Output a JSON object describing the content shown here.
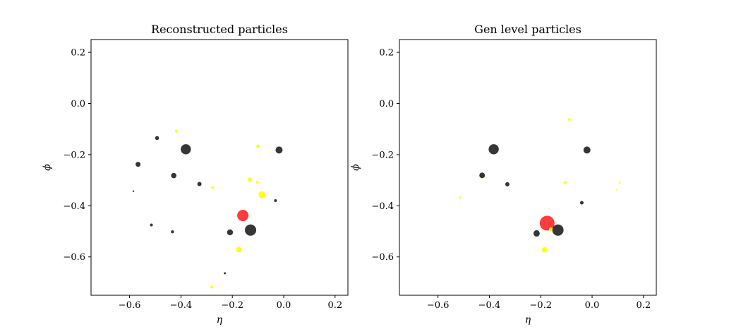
{
  "chart_data": [
    {
      "type": "scatter",
      "title": "Reconstructed particles",
      "xlabel": "η",
      "ylabel": "ϕ",
      "xlim": [
        -0.75,
        0.25
      ],
      "ylim": [
        -0.75,
        0.25
      ],
      "xticks": [
        -0.6,
        -0.4,
        -0.2,
        0.0,
        0.2
      ],
      "xtick_labels": [
        "−0.6",
        "−0.4",
        "−0.2",
        "0.0",
        "0.2"
      ],
      "yticks": [
        0.2,
        0.0,
        -0.2,
        -0.4,
        -0.6
      ],
      "ytick_labels": [
        "0.2",
        "0.0",
        "−0.2",
        "−0.4",
        "−0.6"
      ],
      "grid": false,
      "legend": "none",
      "colors": {
        "charged": "#1a1a1a",
        "neutral": "#ffff00",
        "highlight": "#ff2020"
      },
      "points": [
        {
          "eta": -0.585,
          "phi": -0.343,
          "size": 1.2,
          "kind": "charged"
        },
        {
          "eta": -0.567,
          "phi": -0.238,
          "size": 3.5,
          "kind": "charged"
        },
        {
          "eta": -0.515,
          "phi": -0.475,
          "size": 2.0,
          "kind": "charged"
        },
        {
          "eta": -0.493,
          "phi": -0.135,
          "size": 2.8,
          "kind": "charged"
        },
        {
          "eta": -0.433,
          "phi": -0.502,
          "size": 2.2,
          "kind": "charged"
        },
        {
          "eta": -0.428,
          "phi": -0.282,
          "size": 3.8,
          "kind": "charged"
        },
        {
          "eta": -0.418,
          "phi": -0.108,
          "size": 2.0,
          "kind": "neutral"
        },
        {
          "eta": -0.381,
          "phi": -0.179,
          "size": 7.2,
          "kind": "charged"
        },
        {
          "eta": -0.328,
          "phi": -0.315,
          "size": 3.0,
          "kind": "charged"
        },
        {
          "eta": -0.278,
          "phi": -0.328,
          "size": 1.8,
          "kind": "neutral"
        },
        {
          "eta": -0.281,
          "phi": -0.718,
          "size": 2.0,
          "kind": "neutral"
        },
        {
          "eta": -0.229,
          "phi": -0.664,
          "size": 1.5,
          "kind": "charged"
        },
        {
          "eta": -0.209,
          "phi": -0.504,
          "size": 4.2,
          "kind": "charged"
        },
        {
          "eta": -0.175,
          "phi": -0.571,
          "size": 4.0,
          "kind": "neutral"
        },
        {
          "eta": -0.159,
          "phi": -0.438,
          "size": 8.0,
          "kind": "highlight"
        },
        {
          "eta": -0.129,
          "phi": -0.495,
          "size": 8.0,
          "kind": "charged"
        },
        {
          "eta": -0.132,
          "phi": -0.297,
          "size": 3.0,
          "kind": "neutral"
        },
        {
          "eta": -0.103,
          "phi": -0.308,
          "size": 2.0,
          "kind": "neutral"
        },
        {
          "eta": -0.1,
          "phi": -0.167,
          "size": 2.5,
          "kind": "neutral"
        },
        {
          "eta": -0.085,
          "phi": -0.357,
          "size": 5.0,
          "kind": "neutral"
        },
        {
          "eta": -0.032,
          "phi": -0.38,
          "size": 2.0,
          "kind": "charged"
        },
        {
          "eta": -0.018,
          "phi": -0.182,
          "size": 5.0,
          "kind": "charged"
        }
      ]
    },
    {
      "type": "scatter",
      "title": "Gen level particles",
      "xlabel": "η",
      "ylabel": "ϕ",
      "xlim": [
        -0.75,
        0.25
      ],
      "ylim": [
        -0.75,
        0.25
      ],
      "xticks": [
        -0.6,
        -0.4,
        -0.2,
        0.0,
        0.2
      ],
      "xtick_labels": [
        "−0.6",
        "−0.4",
        "−0.2",
        "0.0",
        "0.2"
      ],
      "yticks": [
        0.2,
        0.0,
        -0.2,
        -0.4,
        -0.6
      ],
      "ytick_labels": [
        "0.2",
        "0.0",
        "−0.2",
        "−0.4",
        "−0.6"
      ],
      "grid": false,
      "legend": "none",
      "colors": {
        "charged": "#1a1a1a",
        "neutral": "#ffff00",
        "highlight": "#ff2020"
      },
      "points": [
        {
          "eta": -0.513,
          "phi": -0.367,
          "size": 1.5,
          "kind": "neutral"
        },
        {
          "eta": -0.43,
          "phi": -0.29,
          "size": 1.5,
          "kind": "neutral"
        },
        {
          "eta": -0.428,
          "phi": -0.281,
          "size": 4.0,
          "kind": "charged"
        },
        {
          "eta": -0.383,
          "phi": -0.179,
          "size": 7.2,
          "kind": "charged"
        },
        {
          "eta": -0.33,
          "phi": -0.316,
          "size": 3.0,
          "kind": "charged"
        },
        {
          "eta": -0.216,
          "phi": -0.508,
          "size": 4.5,
          "kind": "charged"
        },
        {
          "eta": -0.185,
          "phi": -0.572,
          "size": 4.0,
          "kind": "neutral"
        },
        {
          "eta": -0.175,
          "phi": -0.468,
          "size": 10.5,
          "kind": "highlight"
        },
        {
          "eta": -0.16,
          "phi": -0.492,
          "size": 3.0,
          "kind": "neutral"
        },
        {
          "eta": -0.133,
          "phi": -0.495,
          "size": 8.0,
          "kind": "charged"
        },
        {
          "eta": -0.105,
          "phi": -0.308,
          "size": 2.0,
          "kind": "neutral"
        },
        {
          "eta": -0.088,
          "phi": -0.063,
          "size": 2.0,
          "kind": "neutral"
        },
        {
          "eta": -0.04,
          "phi": -0.388,
          "size": 2.5,
          "kind": "charged"
        },
        {
          "eta": -0.02,
          "phi": -0.182,
          "size": 5.0,
          "kind": "charged"
        },
        {
          "eta": 0.095,
          "phi": -0.337,
          "size": 1.2,
          "kind": "neutral"
        },
        {
          "eta": 0.107,
          "phi": -0.31,
          "size": 1.5,
          "kind": "neutral"
        }
      ]
    }
  ]
}
